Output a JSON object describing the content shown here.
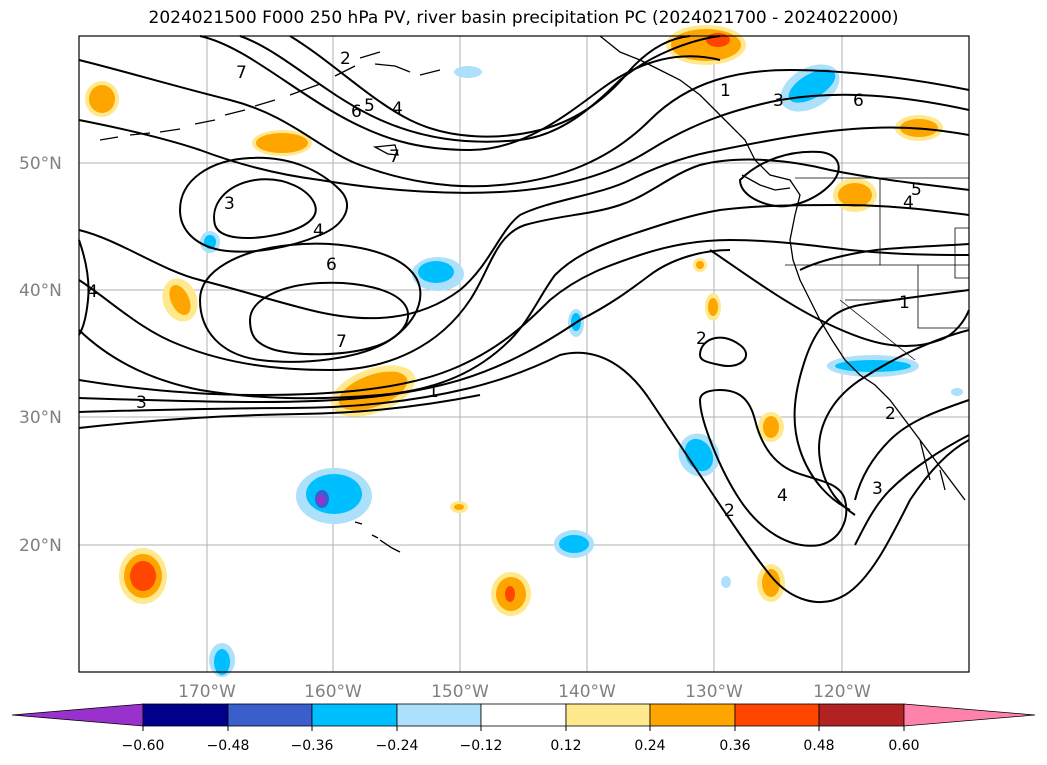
{
  "title": "2024021500 F000 250 hPa PV, river basin precipitation PC (2024021700 - 2024022000)",
  "map": {
    "lat_labels": [
      "50°N",
      "40°N",
      "30°N",
      "20°N"
    ],
    "lon_labels": [
      "170°W",
      "160°W",
      "150°W",
      "140°W",
      "130°W",
      "120°W"
    ],
    "contour_labels": [
      "7",
      "2",
      "5",
      "4",
      "6",
      "1",
      "6",
      "3",
      "7",
      "3",
      "4",
      "6",
      "4",
      "7",
      "1",
      "3",
      "2",
      "5",
      "4",
      "1",
      "2",
      "2",
      "4",
      "3"
    ]
  },
  "colorbar": {
    "tick_labels": [
      "−0.60",
      "−0.48",
      "−0.36",
      "−0.24",
      "−0.12",
      "0.12",
      "0.24",
      "0.36",
      "0.48",
      "0.60"
    ],
    "colors": {
      "under": "#9932CC",
      "c1": "#00008B",
      "c2": "#3A5FCD",
      "c3": "#00BFFF",
      "c4": "#ADE0FA",
      "c5": "#FFFFFF",
      "c6": "#FFE98C",
      "c7": "#FFA500",
      "c8": "#FF4500",
      "c9": "#B22222",
      "over": "#FF82AB"
    }
  }
}
